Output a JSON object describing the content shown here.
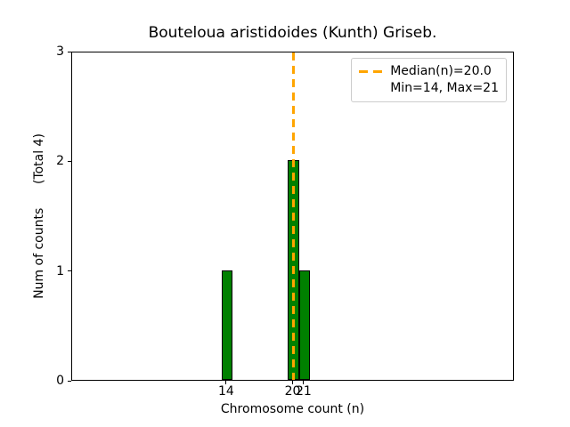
{
  "figure": {
    "title": "Bouteloua aristidoides (Kunth) Griseb.",
    "xlabel": "Chromosome count (n)",
    "ylabel": "Num of counts      (Total 4)"
  },
  "legend": {
    "median_label": "Median(n)=20.0",
    "minmax_label": "Min=14, Max=21"
  },
  "colors": {
    "bar_fill": "#008000",
    "bar_edge": "#000000",
    "median_line": "#FFA500",
    "legend_border": "#cccccc",
    "axis": "#000000",
    "background": "#ffffff"
  },
  "chart_data": {
    "type": "bar",
    "title": "Bouteloua aristidoides (Kunth) Griseb.",
    "xlabel": "Chromosome count (n)",
    "ylabel": "Num of counts      (Total 4)",
    "x": [
      14,
      20,
      21
    ],
    "values": [
      1,
      2,
      1
    ],
    "bar_width": 1,
    "xlim": [
      0,
      40
    ],
    "ylim": [
      0,
      3
    ],
    "xticks": [
      14,
      20,
      21
    ],
    "yticks": [
      0,
      1,
      2,
      3
    ],
    "total_counts": 4,
    "median": 20.0,
    "min": 14,
    "max": 21,
    "legend_entries": [
      "Median(n)=20.0",
      "Min=14, Max=21"
    ],
    "legend_position": "upper right",
    "grid": false
  }
}
